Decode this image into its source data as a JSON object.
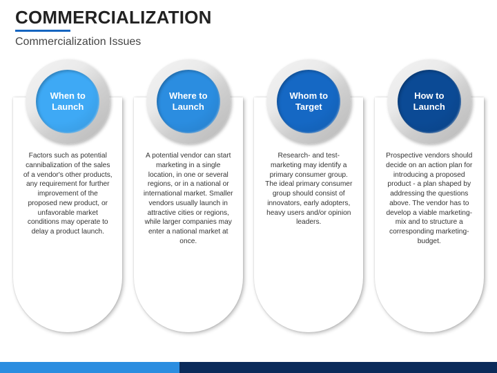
{
  "header": {
    "title": "COMMERCIALIZATION",
    "subtitle": "Commercialization Issues",
    "underline_color": "#1565c0"
  },
  "layout": {
    "column_count": 4,
    "circle_outer_diameter": 122,
    "circle_inner_diameter": 92,
    "pill_height": 340,
    "pill_radius_bottom": 80,
    "ring_gradient_from": "#f4f4f4",
    "ring_gradient_to": "#b8b8b8",
    "body_font_size": 10.2,
    "label_font_size": 13,
    "title_font_size": 26,
    "subtitle_font_size": 16
  },
  "columns": [
    {
      "label": "When to Launch",
      "circle_color": "#3ea9f5",
      "body": "Factors such as potential cannibalization of the sales of a vendor's other products, any requirement for further improvement of the proposed new product, or unfavorable market conditions may operate to delay a product launch."
    },
    {
      "label": "Where to Launch",
      "circle_color": "#2b8de0",
      "body": "A potential vendor can start marketing in a single location, in one or several regions, or in a national or international market.\nSmaller vendors usually launch in attractive cities or regions, while larger companies may enter a national market at once."
    },
    {
      "label": "Whom to Target",
      "circle_color": "#1568c4",
      "body": "Research- and test-marketing may identify a primary consumer group. The ideal primary consumer group should consist of innovators, early adopters, heavy users and/or opinion leaders."
    },
    {
      "label": "How to Launch",
      "circle_color": "#0b4a95",
      "body": "Prospective vendors should decide on an action plan for introducing a proposed product - a plan shaped by addressing the questions above. The vendor has to develop a viable marketing-mix and to structure a corresponding marketing-budget."
    }
  ],
  "footer": {
    "bar_color": "#0b2b5a",
    "accent_color": "#2b8de0",
    "accent_width": 260
  }
}
